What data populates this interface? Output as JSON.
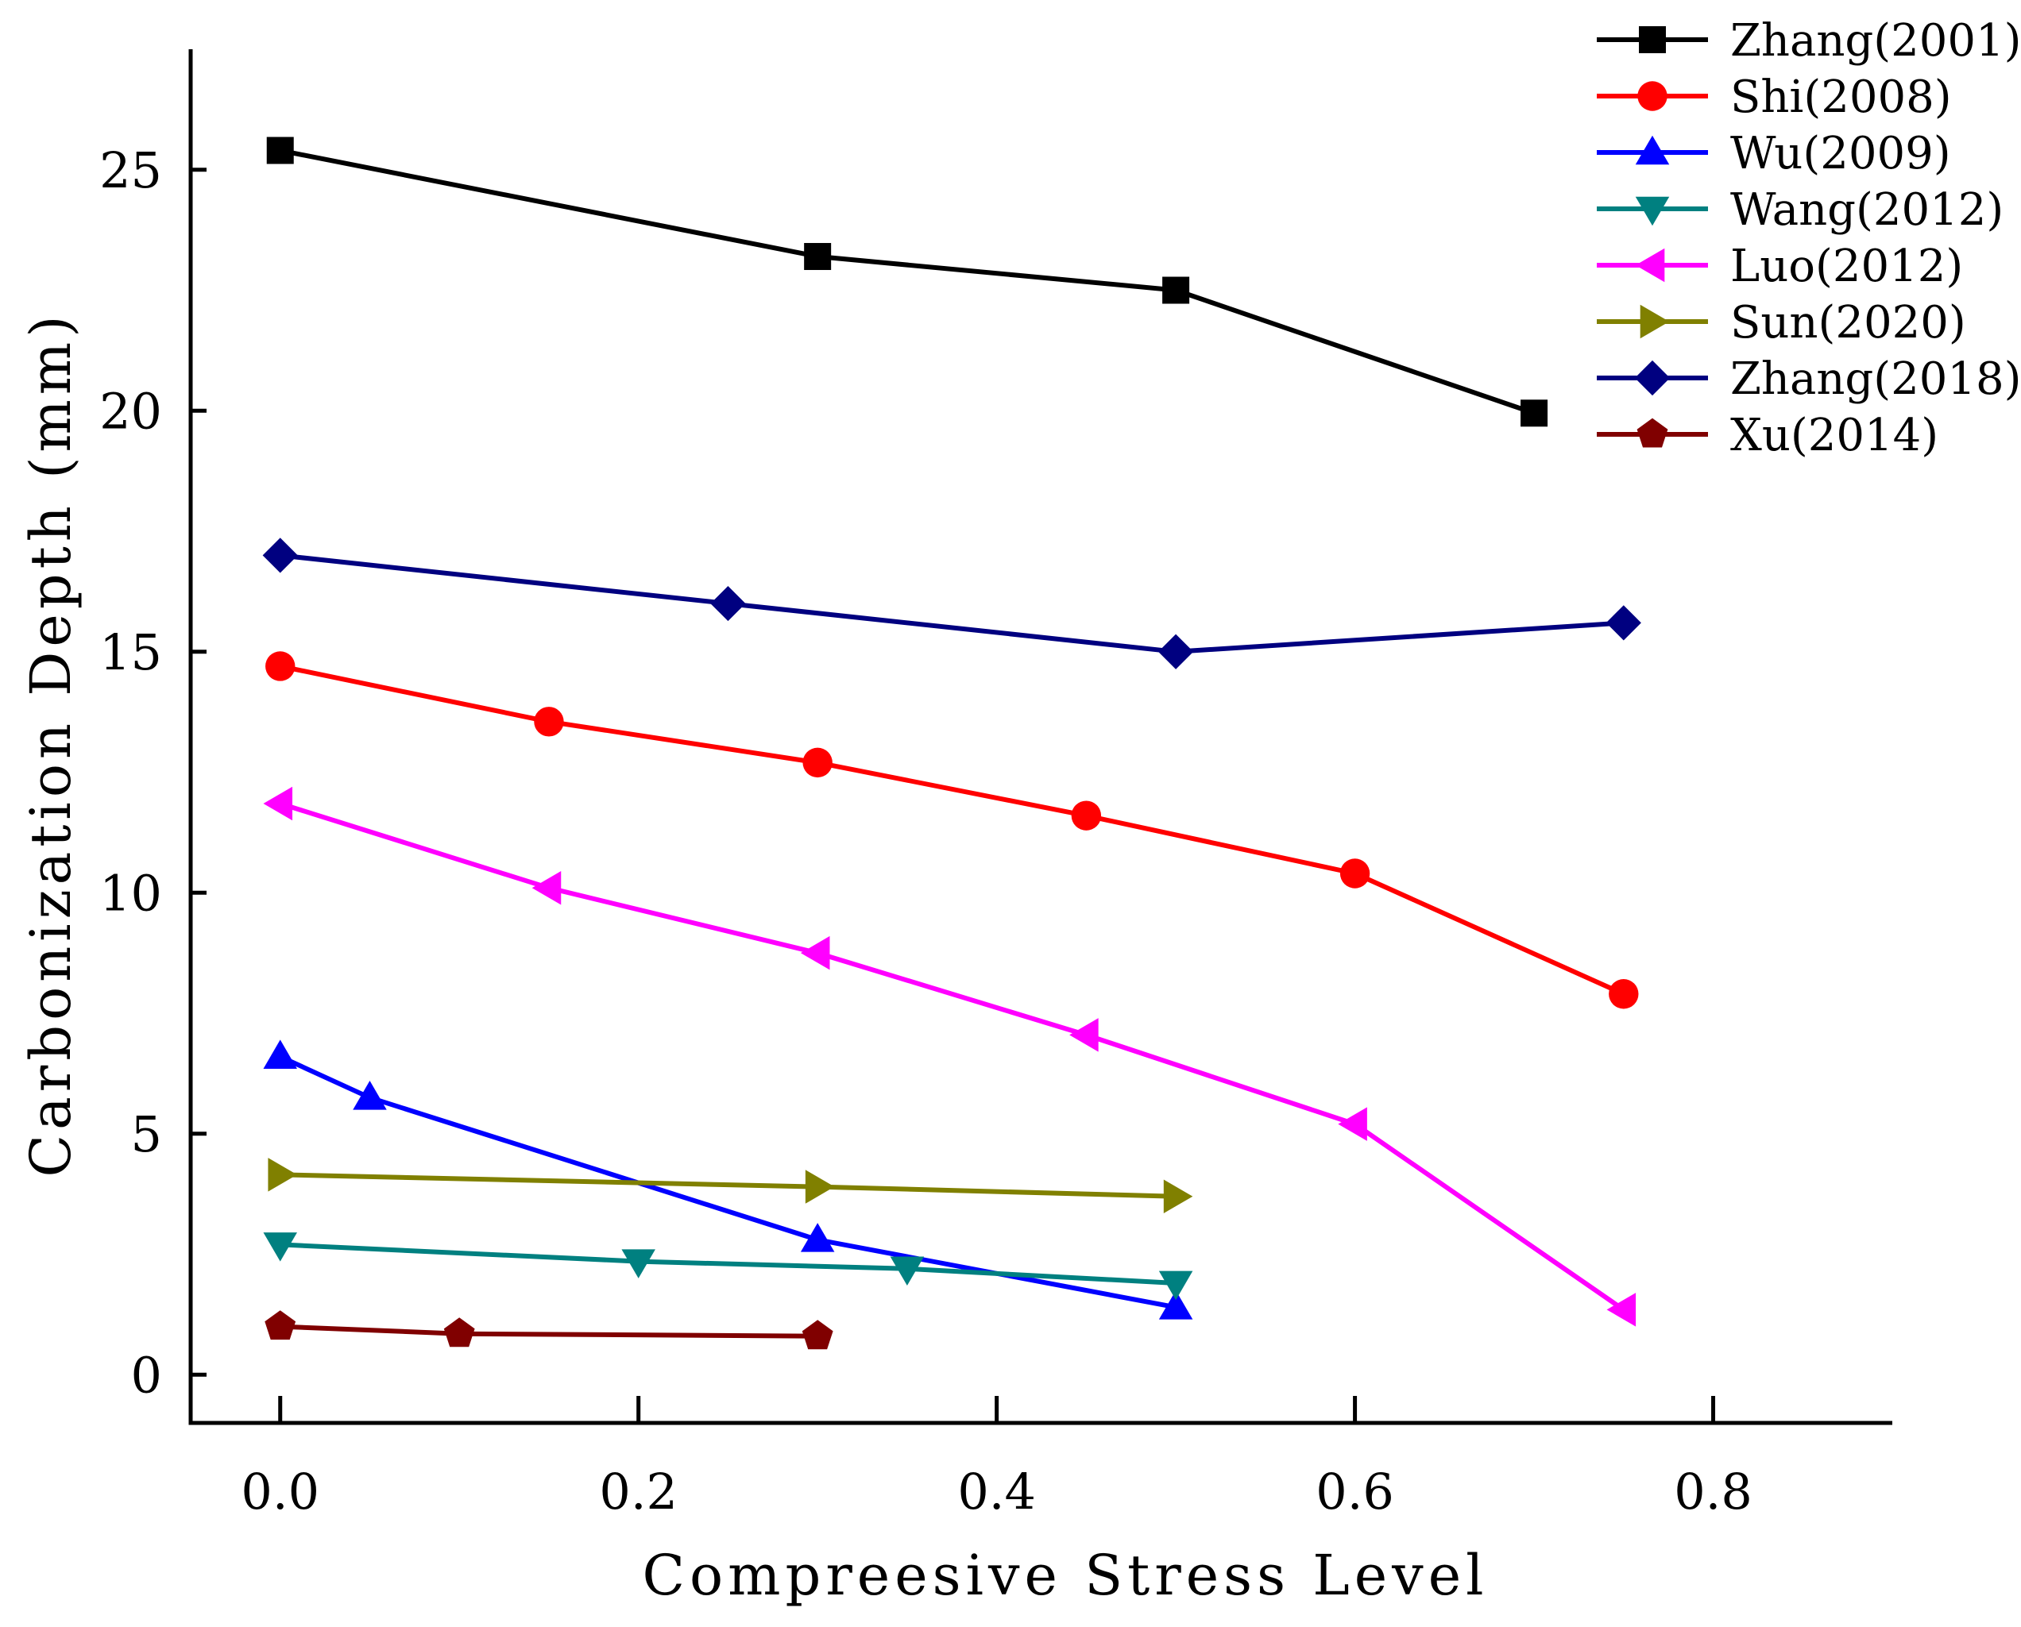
{
  "chart_data": {
    "type": "line",
    "title": "",
    "xlabel": "Compreesive Stress Level",
    "ylabel": "Carbonization Depth (mm)",
    "xlim": [
      -0.05,
      0.9
    ],
    "ylim": [
      -1,
      27.5
    ],
    "xticks": [
      0.0,
      0.2,
      0.4,
      0.6,
      0.8
    ],
    "xtick_labels": [
      "0.0",
      "0.2",
      "0.4",
      "0.6",
      "0.8"
    ],
    "yticks": [
      0,
      5,
      10,
      15,
      20,
      25
    ],
    "ytick_labels": [
      "0",
      "5",
      "10",
      "15",
      "20",
      "25"
    ],
    "grid": false,
    "legend_position": "top-right",
    "series": [
      {
        "name": "Zhang(2001)",
        "color": "#000000",
        "marker": "square",
        "x": [
          0.0,
          0.3,
          0.5,
          0.7
        ],
        "y": [
          25.4,
          23.2,
          22.5,
          19.95
        ]
      },
      {
        "name": "Shi(2008)",
        "color": "#ff0000",
        "marker": "circle",
        "x": [
          0.0,
          0.15,
          0.3,
          0.45,
          0.6,
          0.75
        ],
        "y": [
          14.7,
          13.55,
          12.7,
          11.6,
          10.4,
          7.9
        ]
      },
      {
        "name": "Wu(2009)",
        "color": "#0000ff",
        "marker": "triangle-up",
        "x": [
          0.0,
          0.05,
          0.3,
          0.5
        ],
        "y": [
          6.6,
          5.75,
          2.8,
          1.4
        ]
      },
      {
        "name": "Wang(2012)",
        "color": "#008080",
        "marker": "triangle-down",
        "x": [
          0.0,
          0.2,
          0.35,
          0.5
        ],
        "y": [
          2.7,
          2.35,
          2.2,
          1.9
        ]
      },
      {
        "name": "Luo(2012)",
        "color": "#ff00ff",
        "marker": "triangle-left",
        "x": [
          0.0,
          0.15,
          0.3,
          0.45,
          0.6,
          0.75
        ],
        "y": [
          11.85,
          10.1,
          8.75,
          7.05,
          5.2,
          1.35
        ]
      },
      {
        "name": "Sun(2020)",
        "color": "#808000",
        "marker": "triangle-right",
        "x": [
          0.0,
          0.3,
          0.5
        ],
        "y": [
          4.15,
          3.9,
          3.7
        ]
      },
      {
        "name": "Zhang(2018)",
        "color": "#000080",
        "marker": "diamond",
        "x": [
          0.0,
          0.25,
          0.5,
          0.75
        ],
        "y": [
          17.0,
          16.0,
          15.0,
          15.6
        ]
      },
      {
        "name": "Xu(2014)",
        "color": "#800000",
        "marker": "pentagon",
        "x": [
          0.0,
          0.1,
          0.3
        ],
        "y": [
          1.0,
          0.85,
          0.8
        ]
      }
    ]
  }
}
